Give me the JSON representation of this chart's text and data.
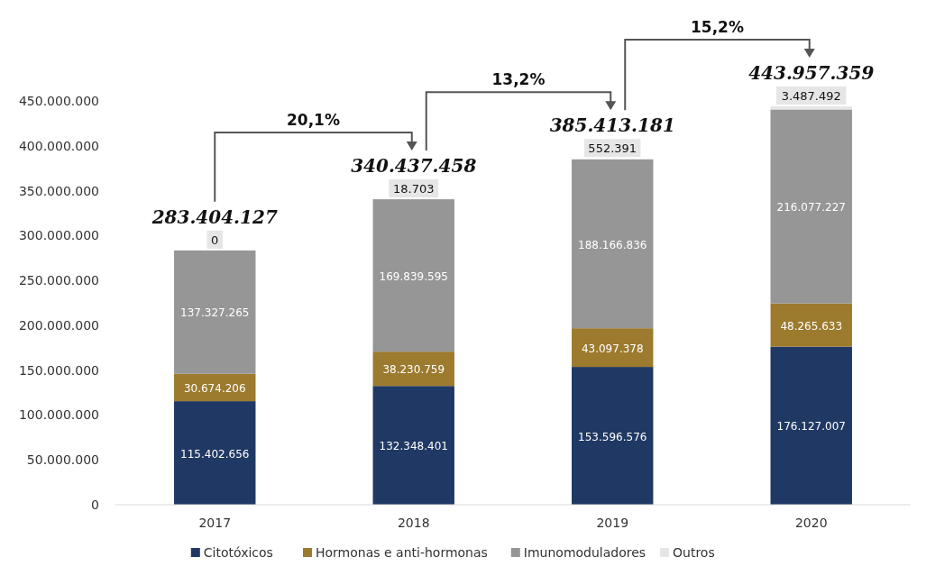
{
  "chart_data": {
    "type": "bar",
    "stacked": true,
    "categories": [
      "2017",
      "2018",
      "2019",
      "2020"
    ],
    "series": [
      {
        "name": "Citotóxicos",
        "color": "#1f3864",
        "values": [
          115402656,
          132348401,
          153596576,
          176127007
        ],
        "value_labels": [
          "115.402.656",
          "132.348.401",
          "153.596.576",
          "176.127.007"
        ]
      },
      {
        "name": "Hormonas e anti-hormonas",
        "color": "#9c7a2e",
        "values": [
          30674206,
          38230759,
          43097378,
          48265633
        ],
        "value_labels": [
          "30.674.206",
          "38.230.759",
          "43.097.378",
          "48.265.633"
        ]
      },
      {
        "name": "Imunomoduladores",
        "color": "#969696",
        "values": [
          137327265,
          169839595,
          188166836,
          216077227
        ],
        "value_labels": [
          "137.327.265",
          "169.839.595",
          "188.166.836",
          "216.077.227"
        ]
      },
      {
        "name": "Outros",
        "color": "#e6e6e6",
        "values": [
          0,
          18703,
          552391,
          3487492
        ],
        "value_labels": [
          "0",
          "18.703",
          "552.391",
          "3.487.492"
        ]
      }
    ],
    "ylim": [
      0,
      450000000
    ],
    "yticks": [
      {
        "value": 0,
        "label": "0"
      },
      {
        "value": 50000000,
        "label": "50.000.000"
      },
      {
        "value": 100000000,
        "label": "100.000.000"
      },
      {
        "value": 150000000,
        "label": "150.000.000"
      },
      {
        "value": 200000000,
        "label": "200.000.000"
      },
      {
        "value": 250000000,
        "label": "250.000.000"
      },
      {
        "value": 300000000,
        "label": "300.000.000"
      },
      {
        "value": 350000000,
        "label": "350.000.000"
      },
      {
        "value": 400000000,
        "label": "400.000.000"
      },
      {
        "value": 450000000,
        "label": "450.000.000"
      }
    ],
    "totals": [
      "283.404.127",
      "340.437.458",
      "385.413.181",
      "443.957.359"
    ],
    "annotations": [
      "20,1%",
      "13,2%",
      "15,2%"
    ],
    "grid": false,
    "legend": "bottom"
  }
}
